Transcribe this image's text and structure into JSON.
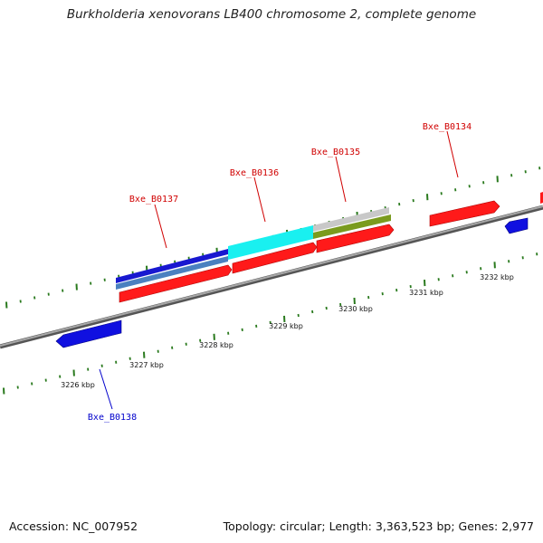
{
  "title": "Burkholderia xenovorans LB400 chromosome 2, complete genome",
  "footer": {
    "accession": "Accession: NC_007952",
    "summary": "Topology: circular; Length: 3,363,523 bp; Genes: 2,977"
  },
  "colors": {
    "backbone": "#8a8a8a",
    "tick": "#2a7a1e",
    "forward_label": "#d00000",
    "reverse_label": "#0000cc",
    "cds_red": "#ff1a1a",
    "cds_blue": "#1010e0",
    "track_darkblue": "#1818d0",
    "track_steelblue": "#4a80c0",
    "track_cyan": "#19f0f0",
    "track_silver": "#c8c8c8",
    "track_olive": "#7a9b1e"
  },
  "tick_labels": [
    "3226 kbp",
    "3227 kbp",
    "3228 kbp",
    "3229 kbp",
    "3230 kbp",
    "3231 kbp",
    "3232 kbp"
  ],
  "gene_labels": [
    {
      "name": "Bxe_B0137",
      "strand": "forward"
    },
    {
      "name": "Bxe_B0136",
      "strand": "forward"
    },
    {
      "name": "Bxe_B0135",
      "strand": "forward"
    },
    {
      "name": "Bxe_B0134",
      "strand": "forward"
    },
    {
      "name": "Bxe_B0138",
      "strand": "reverse"
    }
  ]
}
